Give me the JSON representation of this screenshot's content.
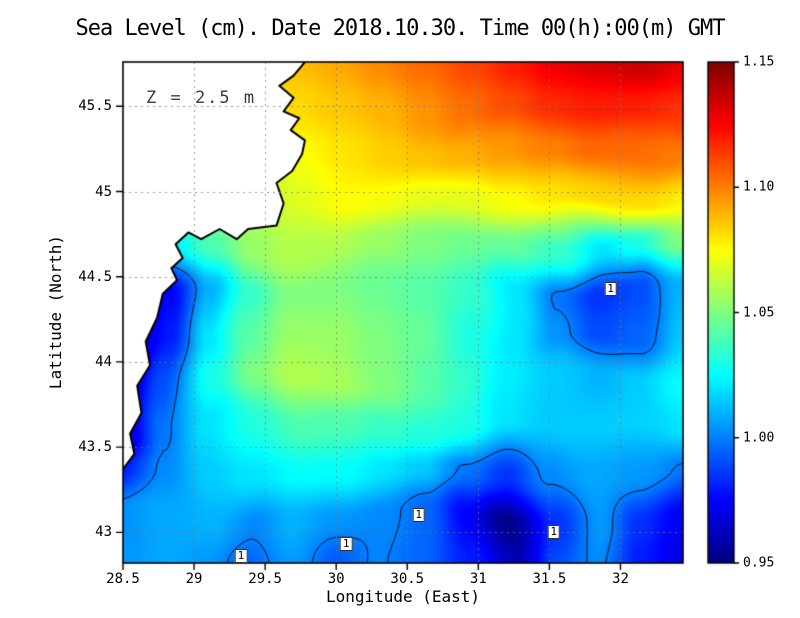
{
  "title": "Sea Level (cm). Date 2018.10.30. Time 00(h):00(m) GMT",
  "annotation": "Z = 2.5 m",
  "axes": {
    "xlabel": "Longitude (East)",
    "ylabel": "Latitude (North)"
  },
  "colorbar": {
    "min": 0.95,
    "max": 1.15,
    "tick_values": [
      1.15,
      1.1,
      1.05,
      1.0,
      0.95
    ],
    "tick_labels": [
      "1.15",
      "1.10",
      "1.05",
      "1.00",
      "0.95"
    ]
  },
  "chart_data": {
    "type": "heatmap",
    "title": "Sea Level (cm). Date 2018.10.30. Time 00(h):00(m) GMT",
    "xlabel": "Longitude (East)",
    "ylabel": "Latitude (North)",
    "colormap": "jet",
    "grid": "dashed",
    "value_range": [
      0.95,
      1.15
    ],
    "lon_range": [
      28.5,
      32.44
    ],
    "lat_range": [
      42.82,
      45.76
    ],
    "x_tick_values": [
      28.5,
      29,
      29.5,
      30,
      30.5,
      31,
      31.5,
      32
    ],
    "x_tick_labels": [
      "28.5",
      "29",
      "29.5",
      "30",
      "30.5",
      "31",
      "31.5",
      "32"
    ],
    "y_tick_values": [
      45.5,
      45,
      44.5,
      44,
      43.5,
      43
    ],
    "y_tick_labels": [
      "45.5",
      "45",
      "44.5",
      "44",
      "43.5",
      "43"
    ],
    "grid_lons": [
      28.5,
      28.8,
      29.11,
      29.41,
      29.71,
      30.02,
      30.32,
      30.62,
      30.92,
      31.23,
      31.53,
      31.83,
      32.14,
      32.44
    ],
    "grid_lats": [
      45.76,
      45.49,
      45.23,
      44.96,
      44.69,
      44.42,
      44.16,
      43.89,
      43.62,
      43.35,
      43.09,
      42.82
    ],
    "values": [
      [
        1.085,
        1.085,
        1.085,
        1.085,
        1.088,
        1.092,
        1.098,
        1.105,
        1.112,
        1.12,
        1.128,
        1.132,
        1.135,
        1.13
      ],
      [
        1.075,
        1.075,
        1.075,
        1.078,
        1.082,
        1.086,
        1.09,
        1.096,
        1.103,
        1.11,
        1.117,
        1.12,
        1.12,
        1.115
      ],
      [
        1.06,
        1.06,
        1.062,
        1.068,
        1.075,
        1.08,
        1.084,
        1.087,
        1.09,
        1.095,
        1.1,
        1.105,
        1.104,
        1.1
      ],
      [
        1.045,
        1.048,
        1.052,
        1.06,
        1.07,
        1.075,
        1.073,
        1.071,
        1.07,
        1.074,
        1.08,
        1.083,
        1.082,
        1.078
      ],
      [
        1.005,
        1.02,
        1.04,
        1.055,
        1.06,
        1.06,
        1.055,
        1.05,
        1.047,
        1.045,
        1.035,
        1.02,
        1.03,
        1.05
      ],
      [
        0.97,
        0.975,
        1.01,
        1.035,
        1.05,
        1.05,
        1.046,
        1.042,
        1.035,
        1.02,
        0.998,
        0.985,
        0.99,
        1.01
      ],
      [
        0.96,
        0.98,
        1.02,
        1.042,
        1.055,
        1.055,
        1.05,
        1.045,
        1.03,
        1.02,
        1.004,
        0.99,
        0.995,
        1.015
      ],
      [
        0.952,
        0.99,
        1.03,
        1.05,
        1.06,
        1.058,
        1.05,
        1.042,
        1.035,
        1.022,
        1.015,
        1.01,
        1.015,
        1.025
      ],
      [
        0.96,
        0.998,
        1.02,
        1.032,
        1.04,
        1.04,
        1.036,
        1.032,
        1.03,
        1.02,
        1.015,
        1.015,
        1.016,
        1.02
      ],
      [
        0.98,
        1.002,
        1.015,
        1.02,
        1.026,
        1.025,
        1.02,
        1.015,
        0.998,
        0.985,
        1.002,
        1.008,
        1.005,
        0.998
      ],
      [
        1.003,
        1.008,
        1.01,
        1.002,
        1.01,
        1.005,
        1.002,
        0.995,
        0.975,
        0.952,
        0.985,
        1.005,
        0.985,
        0.975
      ],
      [
        1.005,
        1.008,
        1.005,
        0.995,
        1.005,
        0.993,
        1.001,
        0.995,
        0.98,
        0.96,
        0.99,
        1.002,
        0.98,
        0.97
      ]
    ],
    "contour_level": 1.0,
    "contour_labels": [
      {
        "lon": 29.33,
        "lat": 42.86,
        "text": "1"
      },
      {
        "lon": 30.07,
        "lat": 42.93,
        "text": "1"
      },
      {
        "lon": 30.58,
        "lat": 43.1,
        "text": "1"
      },
      {
        "lon": 31.53,
        "lat": 43.0,
        "text": "1"
      },
      {
        "lon": 31.93,
        "lat": 44.43,
        "text": "1"
      }
    ],
    "coastline": [
      [
        29.78,
        45.76
      ],
      [
        29.7,
        45.68
      ],
      [
        29.6,
        45.62
      ],
      [
        29.7,
        45.55
      ],
      [
        29.63,
        45.47
      ],
      [
        29.74,
        45.43
      ],
      [
        29.68,
        45.36
      ],
      [
        29.78,
        45.3
      ],
      [
        29.76,
        45.22
      ],
      [
        29.69,
        45.12
      ],
      [
        29.58,
        45.05
      ],
      [
        29.63,
        44.93
      ],
      [
        29.58,
        44.8
      ],
      [
        29.38,
        44.78
      ],
      [
        29.3,
        44.72
      ],
      [
        29.18,
        44.78
      ],
      [
        29.05,
        44.72
      ],
      [
        28.96,
        44.76
      ],
      [
        28.87,
        44.69
      ],
      [
        28.92,
        44.61
      ],
      [
        28.84,
        44.55
      ],
      [
        28.88,
        44.48
      ],
      [
        28.78,
        44.4
      ],
      [
        28.74,
        44.26
      ],
      [
        28.66,
        44.12
      ],
      [
        28.69,
        43.98
      ],
      [
        28.6,
        43.86
      ],
      [
        28.63,
        43.7
      ],
      [
        28.55,
        43.58
      ],
      [
        28.58,
        43.46
      ],
      [
        28.5,
        43.37
      ]
    ],
    "land_color": "#ffffff",
    "coast_color": "#000000",
    "colorbar_top_color": "#8b0000",
    "colorbar_bottom_color": "#00008b"
  }
}
